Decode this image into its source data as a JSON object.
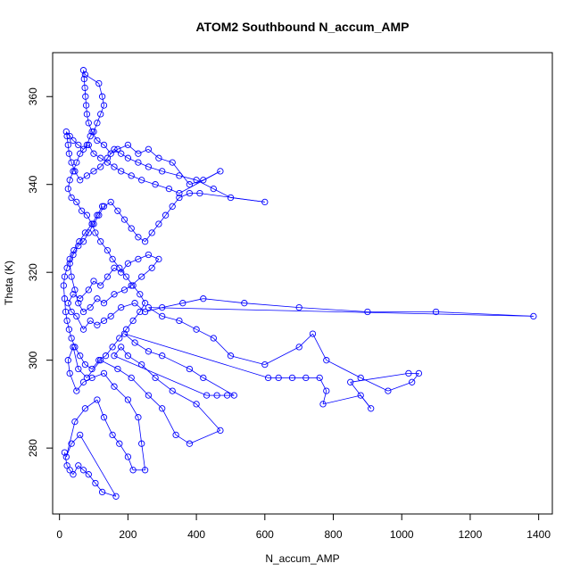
{
  "chart_data": {
    "type": "line",
    "title": "ATOM2 Southbound N_accum_AMP",
    "xlabel": "N_accum_AMP",
    "ylabel": "Theta (K)",
    "xlim": [
      -20,
      1440
    ],
    "ylim": [
      265,
      370
    ],
    "xticks": [
      0,
      200,
      400,
      600,
      800,
      1000,
      1200,
      1400
    ],
    "yticks": [
      280,
      300,
      320,
      340,
      360
    ],
    "grid": false,
    "legend": "none",
    "series_color": "#0000ff",
    "marker": "open-circle",
    "series": [
      {
        "values_xy": [
          [
            15,
            279
          ],
          [
            22,
            276
          ],
          [
            30,
            275
          ],
          [
            40,
            274
          ],
          [
            55,
            276
          ],
          [
            70,
            275
          ],
          [
            85,
            274
          ],
          [
            105,
            272
          ],
          [
            125,
            270
          ],
          [
            165,
            269
          ],
          [
            60,
            283
          ],
          [
            35,
            281
          ],
          [
            20,
            278
          ],
          [
            45,
            286
          ],
          [
            75,
            289
          ],
          [
            110,
            291
          ],
          [
            130,
            287
          ],
          [
            155,
            283
          ],
          [
            175,
            281
          ],
          [
            200,
            278
          ],
          [
            215,
            275
          ],
          [
            250,
            275
          ],
          [
            240,
            281
          ],
          [
            230,
            287
          ],
          [
            200,
            291
          ],
          [
            160,
            294
          ],
          [
            130,
            297
          ],
          [
            95,
            296
          ],
          [
            70,
            295
          ],
          [
            50,
            293
          ],
          [
            30,
            297
          ],
          [
            25,
            300
          ],
          [
            40,
            303
          ],
          [
            55,
            298
          ],
          [
            80,
            296
          ],
          [
            120,
            300
          ],
          [
            170,
            298
          ],
          [
            210,
            296
          ],
          [
            260,
            292
          ],
          [
            300,
            289
          ],
          [
            340,
            283
          ],
          [
            380,
            281
          ],
          [
            470,
            284
          ],
          [
            400,
            290
          ],
          [
            330,
            293
          ],
          [
            280,
            296
          ],
          [
            240,
            299
          ],
          [
            200,
            301
          ],
          [
            180,
            303
          ],
          [
            160,
            301
          ],
          [
            430,
            292
          ],
          [
            460,
            292
          ],
          [
            490,
            292
          ],
          [
            510,
            292
          ],
          [
            420,
            296
          ],
          [
            380,
            298
          ],
          [
            300,
            301
          ],
          [
            260,
            302
          ],
          [
            220,
            304
          ],
          [
            190,
            306
          ],
          [
            610,
            296
          ],
          [
            640,
            296
          ],
          [
            680,
            296
          ],
          [
            720,
            296
          ],
          [
            760,
            296
          ],
          [
            780,
            293
          ],
          [
            770,
            290
          ],
          [
            880,
            292
          ],
          [
            910,
            289
          ],
          [
            850,
            295
          ],
          [
            1020,
            297
          ],
          [
            1050,
            297
          ],
          [
            1030,
            295
          ],
          [
            960,
            293
          ],
          [
            880,
            296
          ],
          [
            780,
            300
          ],
          [
            740,
            306
          ],
          [
            700,
            303
          ],
          [
            600,
            299
          ],
          [
            500,
            301
          ],
          [
            450,
            305
          ],
          [
            400,
            307
          ],
          [
            350,
            309
          ],
          [
            300,
            310
          ],
          [
            260,
            312
          ],
          [
            1385,
            310
          ],
          [
            1100,
            311
          ],
          [
            900,
            311
          ],
          [
            700,
            312
          ],
          [
            540,
            313
          ],
          [
            420,
            314
          ],
          [
            360,
            313
          ],
          [
            300,
            312
          ],
          [
            250,
            311
          ],
          [
            220,
            313
          ],
          [
            180,
            312
          ],
          [
            150,
            310
          ],
          [
            130,
            309
          ],
          [
            110,
            308
          ],
          [
            90,
            309
          ],
          [
            70,
            307
          ],
          [
            50,
            310
          ],
          [
            35,
            311
          ],
          [
            25,
            313
          ],
          [
            40,
            315
          ],
          [
            60,
            314
          ],
          [
            85,
            316
          ],
          [
            100,
            318
          ],
          [
            120,
            317
          ],
          [
            140,
            319
          ],
          [
            160,
            321
          ],
          [
            180,
            320
          ],
          [
            200,
            322
          ],
          [
            230,
            323
          ],
          [
            260,
            324
          ],
          [
            290,
            323
          ],
          [
            270,
            321
          ],
          [
            240,
            319
          ],
          [
            210,
            317
          ],
          [
            190,
            316
          ],
          [
            160,
            315
          ],
          [
            130,
            313
          ],
          [
            110,
            314
          ],
          [
            90,
            312
          ],
          [
            70,
            311
          ],
          [
            55,
            313
          ],
          [
            45,
            316
          ],
          [
            35,
            319
          ],
          [
            30,
            322
          ],
          [
            40,
            324
          ],
          [
            55,
            326
          ],
          [
            70,
            327
          ],
          [
            85,
            329
          ],
          [
            100,
            331
          ],
          [
            115,
            333
          ],
          [
            130,
            335
          ],
          [
            150,
            336
          ],
          [
            170,
            334
          ],
          [
            190,
            332
          ],
          [
            210,
            330
          ],
          [
            230,
            328
          ],
          [
            250,
            327
          ],
          [
            270,
            329
          ],
          [
            290,
            331
          ],
          [
            310,
            333
          ],
          [
            330,
            335
          ],
          [
            350,
            337
          ],
          [
            380,
            338
          ],
          [
            410,
            338
          ],
          [
            600,
            336
          ],
          [
            500,
            337
          ],
          [
            450,
            339
          ],
          [
            400,
            341
          ],
          [
            350,
            342
          ],
          [
            300,
            343
          ],
          [
            260,
            344
          ],
          [
            230,
            345
          ],
          [
            200,
            346
          ],
          [
            180,
            347
          ],
          [
            160,
            348
          ],
          [
            140,
            346
          ],
          [
            120,
            344
          ],
          [
            100,
            343
          ],
          [
            80,
            342
          ],
          [
            60,
            341
          ],
          [
            45,
            343
          ],
          [
            35,
            345
          ],
          [
            28,
            347
          ],
          [
            25,
            349
          ],
          [
            22,
            351
          ],
          [
            20,
            352
          ],
          [
            30,
            351
          ],
          [
            40,
            350
          ],
          [
            55,
            349
          ],
          [
            70,
            348
          ],
          [
            85,
            349
          ],
          [
            100,
            347
          ],
          [
            120,
            346
          ],
          [
            140,
            345
          ],
          [
            160,
            344
          ],
          [
            180,
            343
          ],
          [
            210,
            342
          ],
          [
            240,
            341
          ],
          [
            280,
            340
          ],
          [
            320,
            339
          ],
          [
            350,
            338
          ],
          [
            470,
            343
          ],
          [
            420,
            341
          ],
          [
            380,
            340
          ],
          [
            330,
            345
          ],
          [
            290,
            346
          ],
          [
            260,
            348
          ],
          [
            230,
            347
          ],
          [
            200,
            349
          ],
          [
            170,
            348
          ],
          [
            150,
            347
          ],
          [
            130,
            349
          ],
          [
            110,
            350
          ],
          [
            95,
            352
          ],
          [
            85,
            354
          ],
          [
            80,
            356
          ],
          [
            78,
            358
          ],
          [
            76,
            360
          ],
          [
            74,
            362
          ],
          [
            72,
            364
          ],
          [
            70,
            366
          ],
          [
            75,
            365
          ],
          [
            115,
            363
          ],
          [
            125,
            360
          ],
          [
            130,
            358
          ],
          [
            120,
            356
          ],
          [
            110,
            354
          ],
          [
            100,
            352
          ],
          [
            90,
            351
          ],
          [
            80,
            349
          ],
          [
            60,
            347
          ],
          [
            50,
            345
          ],
          [
            40,
            343
          ],
          [
            30,
            341
          ],
          [
            25,
            339
          ],
          [
            35,
            337
          ],
          [
            50,
            336
          ],
          [
            65,
            334
          ],
          [
            80,
            333
          ],
          [
            95,
            331
          ],
          [
            105,
            329
          ],
          [
            120,
            327
          ],
          [
            140,
            325
          ],
          [
            155,
            323
          ],
          [
            175,
            321
          ],
          [
            195,
            319
          ],
          [
            215,
            317
          ],
          [
            235,
            315
          ],
          [
            250,
            313
          ],
          [
            235,
            311
          ],
          [
            215,
            309
          ],
          [
            195,
            307
          ],
          [
            175,
            305
          ],
          [
            155,
            303
          ],
          [
            135,
            301
          ],
          [
            115,
            300
          ],
          [
            95,
            298
          ],
          [
            75,
            299
          ],
          [
            60,
            301
          ],
          [
            45,
            303
          ],
          [
            35,
            305
          ],
          [
            28,
            307
          ],
          [
            22,
            309
          ],
          [
            18,
            311
          ],
          [
            15,
            314
          ],
          [
            12,
            317
          ],
          [
            15,
            319
          ],
          [
            22,
            321
          ],
          [
            30,
            323
          ],
          [
            42,
            325
          ],
          [
            58,
            327
          ],
          [
            75,
            329
          ],
          [
            95,
            331
          ],
          [
            110,
            333
          ],
          [
            125,
            335
          ]
        ]
      }
    ]
  }
}
